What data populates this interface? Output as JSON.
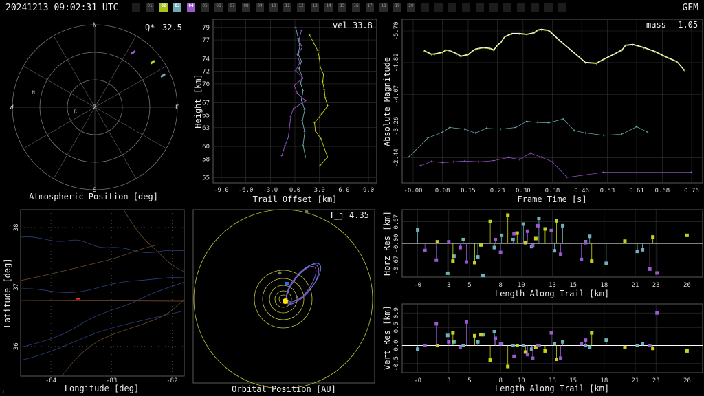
{
  "header": {
    "timestamp": "20241213 09:02:31 UTC",
    "shower": "GEM"
  },
  "stations": [
    {
      "label": "",
      "active": false,
      "color": "#1c1c1c"
    },
    {
      "label": "01",
      "active": false,
      "color": "#2a2a2a"
    },
    {
      "label": "02",
      "active": true,
      "color": "#a8c41c"
    },
    {
      "label": "03",
      "active": true,
      "color": "#6fa9b4"
    },
    {
      "label": "04",
      "active": true,
      "color": "#9b59d0"
    },
    {
      "label": "05",
      "active": false,
      "color": "#2a2a2a"
    },
    {
      "label": "06",
      "active": false,
      "color": "#2a2a2a"
    },
    {
      "label": "07",
      "active": false,
      "color": "#2a2a2a"
    },
    {
      "label": "08",
      "active": false,
      "color": "#2a2a2a"
    },
    {
      "label": "09",
      "active": false,
      "color": "#2a2a2a"
    },
    {
      "label": "10",
      "active": false,
      "color": "#2a2a2a"
    },
    {
      "label": "11",
      "active": false,
      "color": "#2a2a2a"
    },
    {
      "label": "12",
      "active": false,
      "color": "#2a2a2a"
    },
    {
      "label": "13",
      "active": false,
      "color": "#2a2a2a"
    },
    {
      "label": "14",
      "active": false,
      "color": "#2a2a2a"
    },
    {
      "label": "15",
      "active": false,
      "color": "#2a2a2a"
    },
    {
      "label": "16",
      "active": false,
      "color": "#2a2a2a"
    },
    {
      "label": "17",
      "active": false,
      "color": "#2a2a2a"
    },
    {
      "label": "18",
      "active": false,
      "color": "#2a2a2a"
    },
    {
      "label": "19",
      "active": false,
      "color": "#2a2a2a"
    },
    {
      "label": "20",
      "active": false,
      "color": "#2a2a2a"
    },
    {
      "label": "",
      "active": false,
      "color": "#1c1c1c"
    },
    {
      "label": "",
      "active": false,
      "color": "#1c1c1c"
    },
    {
      "label": "",
      "active": false,
      "color": "#1c1c1c"
    },
    {
      "label": "",
      "active": false,
      "color": "#1c1c1c"
    },
    {
      "label": "",
      "active": false,
      "color": "#1c1c1c"
    },
    {
      "label": "",
      "active": false,
      "color": "#1c1c1c"
    },
    {
      "label": "",
      "active": false,
      "color": "#1c1c1c"
    },
    {
      "label": "",
      "active": false,
      "color": "#1c1c1c"
    },
    {
      "label": "",
      "active": false,
      "color": "#1c1c1c"
    },
    {
      "label": "",
      "active": false,
      "color": "#1c1c1c"
    },
    {
      "label": "",
      "active": false,
      "color": "#1c1c1c"
    }
  ],
  "colors": {
    "s02": "#c8d21a",
    "s03": "#6fb0ba",
    "s04": "#9b59d0",
    "axis": "#9a9a9a",
    "grid": "#333333",
    "orbit": "#c8c83a"
  },
  "chart_data": [
    {
      "type": "scatter",
      "id": "polar",
      "xlabel": "Atmospheric Position [deg]",
      "annotation_label": "Q*",
      "annotation_value": "32.5",
      "cardinals": [
        "N",
        "E",
        "S",
        "W",
        "Z"
      ],
      "station_marks": [
        "M",
        "R"
      ],
      "tracks": [
        {
          "station": "04",
          "az": 35,
          "zen": 73
        },
        {
          "station": "02",
          "az": 52,
          "zen": 80
        },
        {
          "station": "03",
          "az": 65,
          "zen": 82
        }
      ]
    },
    {
      "type": "line",
      "id": "trail",
      "xlabel": "Trail Offset [km]",
      "ylabel": "Height [km]",
      "annotation_label": "vel",
      "annotation_value": "33.8",
      "xticks": [
        "-9.0",
        "-6.0",
        "-3.0",
        "0.0",
        "3.0",
        "6.0",
        "9.0"
      ],
      "yticks": [
        "55",
        "58",
        "60",
        "63",
        "65",
        "67",
        "70",
        "72",
        "74",
        "77",
        "79"
      ],
      "xlim": [
        -10,
        10
      ],
      "ylim": [
        54.2,
        80.3
      ],
      "series": [
        {
          "station": "03",
          "x": [
            0.1,
            0.4,
            0.6,
            0.4,
            0.8,
            0.5,
            0.9,
            0.7,
            1.0,
            0.8,
            1.2,
            0.9,
            1.2,
            1.0,
            1.3
          ],
          "y": [
            79.0,
            77.3,
            76.0,
            74.8,
            73.6,
            72.4,
            71.2,
            70.1,
            68.9,
            67.4,
            65.8,
            64.1,
            62.3,
            60.2,
            58.3
          ]
        },
        {
          "station": "02",
          "x": [
            1.8,
            2.3,
            2.8,
            3.0,
            3.1,
            3.5,
            3.4,
            3.6,
            3.7,
            4.0,
            3.3,
            2.4,
            2.5,
            3.2,
            3.6,
            4.0,
            3.1
          ],
          "y": [
            77.8,
            76.5,
            75.3,
            74.0,
            72.7,
            71.5,
            70.3,
            69.0,
            67.8,
            66.5,
            65.2,
            63.8,
            62.5,
            61.2,
            59.7,
            58.3,
            57.0
          ]
        },
        {
          "station": "04",
          "x": [
            0.8,
            0.5,
            0.9,
            0.3,
            0.6,
            0.1,
            1.0,
            -0.1,
            0.3,
            1.3,
            -0.2,
            -0.5,
            -0.8,
            -1.2,
            -1.6
          ],
          "y": [
            78.5,
            77.0,
            75.8,
            74.6,
            73.4,
            72.1,
            70.9,
            69.8,
            68.5,
            67.3,
            66.0,
            64.8,
            61.5,
            60.2,
            58.5
          ]
        }
      ]
    },
    {
      "type": "line",
      "id": "magnitude",
      "xlabel": "Frame Time [s]",
      "ylabel": "Absolute Magnitude",
      "annotation_label": "mass",
      "annotation_value": "-1.05",
      "xticks": [
        "-0.00",
        "0.08",
        "0.15",
        "0.23",
        "0.30",
        "0.38",
        "0.46",
        "0.53",
        "0.61",
        "0.68",
        "0.76"
      ],
      "yticks": [
        "-5.70",
        "-4.89",
        "-4.07",
        "-3.26",
        "-2.44"
      ],
      "xlim": [
        -0.03,
        0.79
      ],
      "ylim": [
        -1.8,
        -6.0
      ],
      "series": [
        {
          "station": "02",
          "fit": true,
          "x": [
            0.03,
            0.05,
            0.06,
            0.07,
            0.08,
            0.09,
            0.1,
            0.12,
            0.13,
            0.15,
            0.16,
            0.17,
            0.19,
            0.21,
            0.22,
            0.23,
            0.24,
            0.25,
            0.27,
            0.29,
            0.31,
            0.33,
            0.34,
            0.35,
            0.37,
            0.4,
            0.47,
            0.5,
            0.52,
            0.55,
            0.57,
            0.58,
            0.6,
            0.63,
            0.66,
            0.69,
            0.72,
            0.74
          ],
          "y": [
            -5.18,
            -5.09,
            -5.1,
            -5.12,
            -5.14,
            -5.2,
            -5.18,
            -5.1,
            -5.04,
            -5.08,
            -5.16,
            -5.22,
            -5.26,
            -5.24,
            -5.2,
            -5.32,
            -5.4,
            -5.54,
            -5.62,
            -5.62,
            -5.6,
            -5.64,
            -5.71,
            -5.73,
            -5.7,
            -5.44,
            -4.88,
            -4.86,
            -4.96,
            -5.1,
            -5.2,
            -5.32,
            -5.34,
            -5.26,
            -5.16,
            -5.02,
            -4.9,
            -4.68
          ]
        },
        {
          "station": "03",
          "fit": false,
          "x": [
            -0.01,
            0.04,
            0.08,
            0.1,
            0.14,
            0.17,
            0.2,
            0.24,
            0.28,
            0.31,
            0.34,
            0.37,
            0.41,
            0.44,
            0.47,
            0.52,
            0.57,
            0.61,
            0.64
          ],
          "y": [
            -2.48,
            -2.95,
            -3.1,
            -3.22,
            -3.18,
            -3.08,
            -3.2,
            -3.18,
            -3.22,
            -3.38,
            -3.35,
            -3.34,
            -3.44,
            -3.14,
            -3.08,
            -3.02,
            -3.05,
            -3.24,
            -3.1
          ]
        },
        {
          "station": "04",
          "fit": false,
          "x": [
            0.02,
            0.05,
            0.08,
            0.11,
            0.14,
            0.18,
            0.22,
            0.26,
            0.29,
            0.32,
            0.35,
            0.38,
            0.42,
            0.52,
            0.76
          ],
          "y": [
            -2.24,
            -2.35,
            -2.32,
            -2.34,
            -2.36,
            -2.34,
            -2.37,
            -2.45,
            -2.4,
            -2.56,
            -2.46,
            -2.34,
            -1.94,
            -2.07,
            -2.07
          ]
        }
      ]
    },
    {
      "type": "line",
      "id": "map",
      "xlabel": "Longitude [deg]",
      "ylabel": "Latitude [deg]",
      "xticks": [
        "-84",
        "-83",
        "-82"
      ],
      "yticks": [
        "38",
        "37",
        "36"
      ],
      "xlim": [
        -84.5,
        -81.8
      ],
      "ylim": [
        35.5,
        38.3
      ],
      "track": {
        "lon": [
          -83.58,
          -83.52
        ],
        "lat": [
          36.8,
          36.8
        ]
      }
    },
    {
      "type": "scatter",
      "id": "orbit",
      "xlabel": "Orbital Position [AU]",
      "annotation_label": "T_j",
      "annotation_value": "4.35"
    },
    {
      "type": "scatter",
      "id": "horz_res",
      "xlabel": "Length Along Trail [km]",
      "ylabel": "Horz Res [km]",
      "xticks": [
        "-0",
        "3",
        "5",
        "8",
        "10",
        "13",
        "15",
        "18",
        "21",
        "23",
        "26"
      ],
      "yticks": [
        "0.67",
        "-0.00",
        "-0.67"
      ],
      "xlim": [
        -1.5,
        27.5
      ],
      "ylim": [
        -1.05,
        1.05
      ],
      "series": [
        {
          "station": "03",
          "x": [
            0.0,
            2.9,
            3.5,
            4.4,
            5.8,
            6.3,
            7.4,
            8.1,
            9.2,
            10.2,
            11.0,
            11.7,
            13.2,
            14.0,
            16.2,
            16.6,
            18.2,
            21.2,
            21.7
          ],
          "y": [
            0.42,
            -0.93,
            -0.4,
            0.12,
            -0.42,
            -1.0,
            -0.13,
            0.25,
            0.12,
            0.6,
            -0.1,
            0.78,
            -0.23,
            0.55,
            0.05,
            0.22,
            -0.62,
            -0.25,
            -0.2
          ]
        },
        {
          "station": "02",
          "x": [
            1.9,
            3.4,
            5.5,
            6.1,
            7.0,
            8.7,
            9.6,
            10.4,
            11.4,
            12.3,
            13.4,
            16.8,
            20.0,
            22.7,
            26.0
          ],
          "y": [
            0.05,
            -0.55,
            -0.6,
            -0.05,
            0.68,
            0.88,
            0.32,
            0.02,
            0.15,
            0.45,
            0.7,
            -0.55,
            0.07,
            0.2,
            0.25
          ]
        },
        {
          "station": "04",
          "x": [
            0.7,
            1.8,
            3.0,
            4.1,
            4.7,
            7.5,
            8.0,
            9.3,
            10.6,
            11.1,
            11.6,
            12.9,
            13.8,
            15.8,
            16.2,
            22.4,
            23.1
          ],
          "y": [
            -0.22,
            -0.52,
            0.05,
            -0.13,
            -0.58,
            0.12,
            -0.28,
            0.3,
            0.38,
            -0.06,
            0.55,
            0.4,
            -0.34,
            -0.5,
            0.02,
            -0.8,
            -0.92
          ]
        }
      ]
    },
    {
      "type": "scatter",
      "id": "vert_res",
      "xlabel": "Length Along Trail [km]",
      "ylabel": "Vert Res [km]",
      "xticks": [
        "-0",
        "3",
        "5",
        "8",
        "10",
        "13",
        "15",
        "18",
        "21",
        "23",
        "26"
      ],
      "yticks": [
        "0.9",
        "0.5",
        "0.0",
        "-0.5"
      ],
      "xlim": [
        -1.5,
        27.5
      ],
      "ylim": [
        -0.75,
        1.15
      ],
      "series": [
        {
          "station": "03",
          "x": [
            0.0,
            2.9,
            3.5,
            4.4,
            5.8,
            6.3,
            7.4,
            8.1,
            9.2,
            10.2,
            11.0,
            11.7,
            13.2,
            14.0,
            16.2,
            16.6,
            18.2,
            21.2,
            21.7
          ],
          "y": [
            -0.1,
            0.28,
            0.1,
            0.0,
            0.1,
            0.3,
            0.38,
            0.05,
            0.0,
            0.0,
            -0.1,
            0.0,
            0.05,
            0.1,
            0.0,
            -0.05,
            0.15,
            0.0,
            0.05
          ]
        },
        {
          "station": "02",
          "x": [
            1.9,
            3.4,
            5.5,
            6.1,
            7.0,
            8.7,
            9.6,
            10.4,
            11.4,
            12.3,
            13.4,
            16.8,
            20.0,
            22.7,
            26.0
          ],
          "y": [
            0.0,
            0.35,
            0.27,
            0.3,
            -0.4,
            -0.58,
            0.0,
            -0.18,
            -0.05,
            -0.15,
            -0.38,
            0.35,
            -0.05,
            -0.08,
            -0.15
          ]
        },
        {
          "station": "04",
          "x": [
            0.7,
            1.8,
            3.0,
            4.1,
            4.7,
            7.5,
            8.0,
            9.3,
            10.6,
            11.1,
            11.6,
            12.9,
            13.8,
            15.8,
            16.2,
            22.4,
            23.1
          ],
          "y": [
            0.0,
            0.6,
            0.1,
            -0.05,
            0.65,
            0.2,
            0.05,
            -0.3,
            -0.25,
            -0.35,
            0.0,
            0.35,
            -0.35,
            0.05,
            0.15,
            0.0,
            0.9
          ]
        }
      ]
    }
  ]
}
